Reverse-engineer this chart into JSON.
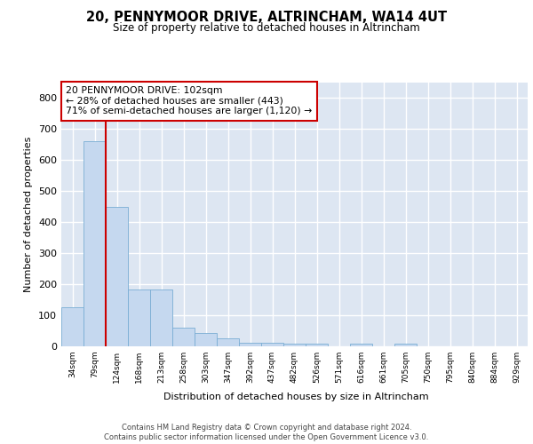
{
  "title": "20, PENNYMOOR DRIVE, ALTRINCHAM, WA14 4UT",
  "subtitle": "Size of property relative to detached houses in Altrincham",
  "xlabel": "Distribution of detached houses by size in Altrincham",
  "ylabel": "Number of detached properties",
  "bar_values": [
    125,
    660,
    450,
    183,
    183,
    60,
    42,
    25,
    12,
    12,
    10,
    8,
    0,
    8,
    0,
    8,
    0,
    0,
    0,
    0,
    0
  ],
  "categories": [
    "34sqm",
    "79sqm",
    "124sqm",
    "168sqm",
    "213sqm",
    "258sqm",
    "303sqm",
    "347sqm",
    "392sqm",
    "437sqm",
    "482sqm",
    "526sqm",
    "571sqm",
    "616sqm",
    "661sqm",
    "705sqm",
    "750sqm",
    "795sqm",
    "840sqm",
    "884sqm",
    "929sqm"
  ],
  "bar_color": "#c5d8ef",
  "bar_edgecolor": "#7aaed4",
  "vline_x": 1.5,
  "vline_color": "#cc0000",
  "annotation_text": "20 PENNYMOOR DRIVE: 102sqm\n← 28% of detached houses are smaller (443)\n71% of semi-detached houses are larger (1,120) →",
  "annotation_box_color": "#ffffff",
  "annotation_box_edgecolor": "#cc0000",
  "ylim": [
    0,
    850
  ],
  "yticks": [
    0,
    100,
    200,
    300,
    400,
    500,
    600,
    700,
    800
  ],
  "bg_color": "#dde6f2",
  "grid_color": "#ffffff",
  "footer": "Contains HM Land Registry data © Crown copyright and database right 2024.\nContains public sector information licensed under the Open Government Licence v3.0."
}
